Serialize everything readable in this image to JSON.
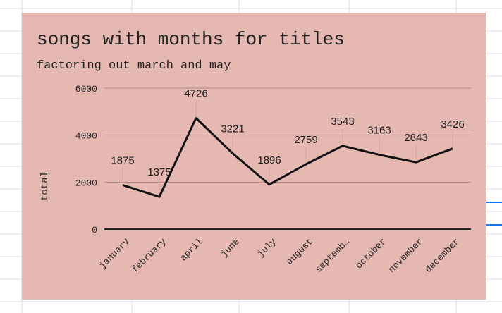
{
  "chart_data": {
    "type": "line",
    "title": "songs with months for titles",
    "subtitle": "factoring out march and may",
    "xlabel": "",
    "ylabel": "total",
    "categories": [
      "january",
      "february",
      "april",
      "june",
      "july",
      "august",
      "septemb…",
      "october",
      "november",
      "december"
    ],
    "series": [
      {
        "values": [
          1875,
          1375,
          4726,
          3221,
          1896,
          2759,
          3543,
          3163,
          2843,
          3426
        ]
      }
    ],
    "ylim": [
      0,
      6000
    ],
    "yticks": [
      "0",
      "2000",
      "4000",
      "6000"
    ],
    "grid": true,
    "legend": "none",
    "colors": {
      "background": "#e6b8b2",
      "line": "#111111",
      "gridline": "#b08a86",
      "baseline": "#222222",
      "text": "#222222",
      "label_text": "#1a1a1a",
      "connector": "#d9a29c"
    }
  }
}
